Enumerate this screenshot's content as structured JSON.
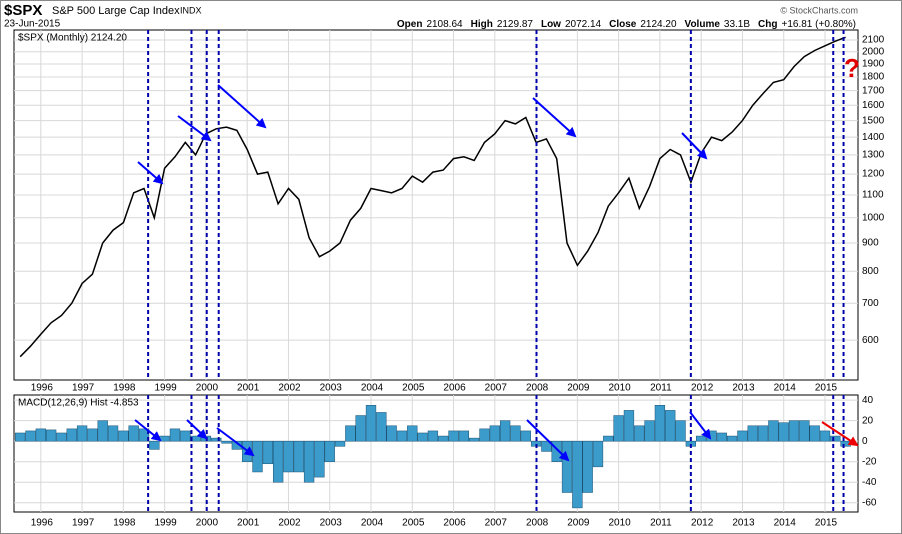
{
  "header": {
    "symbol": "$SPX",
    "name": "S&P 500 Large Cap Index",
    "exchange": "INDX",
    "date": "23-Jun-2015",
    "quote": [
      {
        "label": "Open",
        "value": "2108.64"
      },
      {
        "label": "High",
        "value": "2129.87"
      },
      {
        "label": "Low",
        "value": "2072.14"
      },
      {
        "label": "Close",
        "value": "2124.20"
      },
      {
        "label": "Volume",
        "value": "33.1B"
      },
      {
        "label": "Chg",
        "value": "+16.81 (+0.80%)"
      }
    ],
    "source": "© StockCharts.com"
  },
  "chart_data": [
    {
      "type": "line",
      "legend": "$SPX (Monthly) 2124.20",
      "annotation": "?",
      "color": "#000000",
      "log": true,
      "grid": true,
      "xlim": [
        1995.35,
        2015.8
      ],
      "xticks": [
        1996,
        1997,
        1998,
        1999,
        2000,
        2001,
        2002,
        2003,
        2004,
        2005,
        2006,
        2007,
        2008,
        2009,
        2010,
        2011,
        2012,
        2013,
        2014,
        2015
      ],
      "ylim": [
        508,
        2190
      ],
      "yticks": [
        600,
        700,
        800,
        900,
        1000,
        1100,
        1200,
        1300,
        1400,
        1500,
        1600,
        1700,
        1800,
        1900,
        2000,
        2100
      ],
      "markers": [
        1998.6,
        1999.65,
        2000.02,
        2000.31,
        2008.01,
        2011.75,
        2015.2,
        2015.45
      ],
      "marker_color": "#0000aa",
      "x": [
        1995.5,
        1995.75,
        1996,
        1996.25,
        1996.5,
        1996.75,
        1997,
        1997.25,
        1997.5,
        1997.75,
        1998,
        1998.25,
        1998.5,
        1998.75,
        1999,
        1999.25,
        1999.5,
        1999.75,
        2000,
        2000.25,
        2000.5,
        2000.75,
        2001,
        2001.25,
        2001.5,
        2001.75,
        2002,
        2002.25,
        2002.5,
        2002.75,
        2003,
        2003.25,
        2003.5,
        2003.75,
        2004,
        2004.25,
        2004.5,
        2004.75,
        2005,
        2005.25,
        2005.5,
        2005.75,
        2006,
        2006.25,
        2006.5,
        2006.75,
        2007,
        2007.25,
        2007.5,
        2007.75,
        2008,
        2008.25,
        2008.5,
        2008.75,
        2009,
        2009.25,
        2009.5,
        2009.75,
        2010,
        2010.25,
        2010.5,
        2010.75,
        2011,
        2011.25,
        2011.5,
        2011.75,
        2012,
        2012.25,
        2012.5,
        2012.75,
        2013,
        2013.25,
        2013.5,
        2013.75,
        2014,
        2014.25,
        2014.5,
        2014.75,
        2015,
        2015.25,
        2015.5
      ],
      "series": [
        {
          "name": "$SPX",
          "values": [
            560,
            585,
            615,
            645,
            665,
            700,
            760,
            790,
            900,
            950,
            980,
            1110,
            1130,
            1000,
            1230,
            1290,
            1370,
            1300,
            1420,
            1450,
            1460,
            1440,
            1330,
            1200,
            1210,
            1060,
            1130,
            1080,
            920,
            850,
            870,
            900,
            990,
            1040,
            1130,
            1120,
            1110,
            1130,
            1190,
            1160,
            1210,
            1220,
            1280,
            1290,
            1270,
            1370,
            1420,
            1500,
            1480,
            1520,
            1370,
            1390,
            1280,
            900,
            820,
            870,
            940,
            1050,
            1110,
            1180,
            1040,
            1140,
            1280,
            1330,
            1300,
            1160,
            1310,
            1400,
            1380,
            1430,
            1500,
            1600,
            1680,
            1760,
            1780,
            1880,
            1960,
            2010,
            2050,
            2090,
            2124
          ]
        }
      ]
    },
    {
      "type": "histogram",
      "legend": "MACD(12,26,9) Hist -4.853",
      "color": "#3b9ccc",
      "grid": true,
      "xlim": [
        1995.35,
        2015.8
      ],
      "xticks": [
        1996,
        1997,
        1998,
        1999,
        2000,
        2001,
        2002,
        2003,
        2004,
        2005,
        2006,
        2007,
        2008,
        2009,
        2010,
        2011,
        2012,
        2013,
        2014,
        2015
      ],
      "ylim": [
        -69,
        45
      ],
      "yticks": [
        40,
        20,
        0,
        -20,
        -40,
        -60
      ],
      "markers": [
        1998.6,
        1999.65,
        2000.02,
        2000.31,
        2008.01,
        2011.75,
        2015.2,
        2015.45
      ],
      "marker_color": "#0000aa",
      "x": [
        1995.5,
        1995.75,
        1996,
        1996.25,
        1996.5,
        1996.75,
        1997,
        1997.25,
        1997.5,
        1997.75,
        1998,
        1998.25,
        1998.5,
        1998.75,
        1999,
        1999.25,
        1999.5,
        1999.75,
        2000,
        2000.25,
        2000.5,
        2000.75,
        2001,
        2001.25,
        2001.5,
        2001.75,
        2002,
        2002.25,
        2002.5,
        2002.75,
        2003,
        2003.25,
        2003.5,
        2003.75,
        2004,
        2004.25,
        2004.5,
        2004.75,
        2005,
        2005.25,
        2005.5,
        2005.75,
        2006,
        2006.25,
        2006.5,
        2006.75,
        2007,
        2007.25,
        2007.5,
        2007.75,
        2008,
        2008.25,
        2008.5,
        2008.75,
        2009,
        2009.25,
        2009.5,
        2009.75,
        2010,
        2010.25,
        2010.5,
        2010.75,
        2011,
        2011.25,
        2011.5,
        2011.75,
        2012,
        2012.25,
        2012.5,
        2012.75,
        2013,
        2013.25,
        2013.5,
        2013.75,
        2014,
        2014.25,
        2014.5,
        2014.75,
        2015,
        2015.25,
        2015.5
      ],
      "values": [
        8,
        10,
        12,
        11,
        8,
        12,
        15,
        12,
        20,
        15,
        10,
        15,
        12,
        -8,
        5,
        12,
        10,
        5,
        5,
        3,
        -2,
        -8,
        -20,
        -30,
        -22,
        -40,
        -30,
        -30,
        -40,
        -35,
        -20,
        -5,
        15,
        25,
        35,
        28,
        15,
        10,
        15,
        8,
        10,
        5,
        10,
        10,
        3,
        12,
        15,
        20,
        15,
        10,
        -5,
        -10,
        -20,
        -50,
        -65,
        -50,
        -25,
        5,
        25,
        30,
        15,
        20,
        35,
        30,
        20,
        -5,
        5,
        10,
        8,
        5,
        10,
        15,
        15,
        20,
        18,
        20,
        20,
        15,
        10,
        5,
        -5
      ]
    }
  ]
}
